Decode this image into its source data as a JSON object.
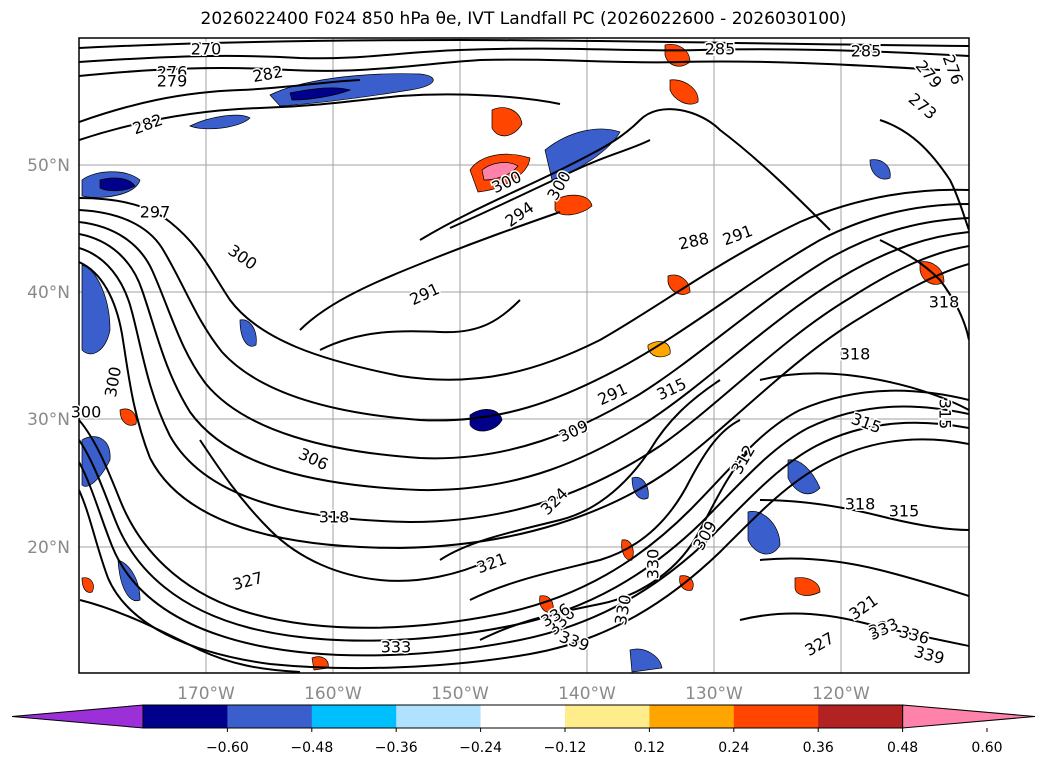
{
  "title": "2026022400 F024 850 hPa θe, IVT Landfall PC (2026022600 - 2026030100)",
  "map": {
    "latitude_labels": [
      "50°N",
      "40°N",
      "30°N",
      "20°N"
    ],
    "longitude_labels": [
      "170°W",
      "160°W",
      "150°W",
      "140°W",
      "130°W",
      "120°W"
    ],
    "contour_color": "#000000",
    "gridline_color": "#a0a0a0",
    "contour_labels": [
      "270",
      "276",
      "279",
      "282",
      "285",
      "285",
      "279",
      "276",
      "273",
      "282",
      "297",
      "294",
      "291",
      "300",
      "288",
      "291",
      "300",
      "291",
      "306",
      "309",
      "300",
      "315",
      "312",
      "318",
      "324",
      "327",
      "321",
      "330",
      "333",
      "336",
      "339",
      "309",
      "315",
      "318",
      "315",
      "330",
      "336",
      "333",
      "321",
      "327",
      "333",
      "336",
      "339",
      "300",
      "300",
      "318",
      "318",
      "315"
    ]
  },
  "colorbar": {
    "ticks": [
      "−0.60",
      "−0.48",
      "−0.36",
      "−0.24",
      "−0.12",
      "0.12",
      "0.24",
      "0.36",
      "0.48",
      "0.60"
    ],
    "colors": [
      "#9b30d8",
      "#00008b",
      "#3a5fcd",
      "#00bfff",
      "#b0e2ff",
      "#ffffff",
      "#ffec8b",
      "#ffa500",
      "#ff4500",
      "#b22222",
      "#ff82ab"
    ]
  }
}
